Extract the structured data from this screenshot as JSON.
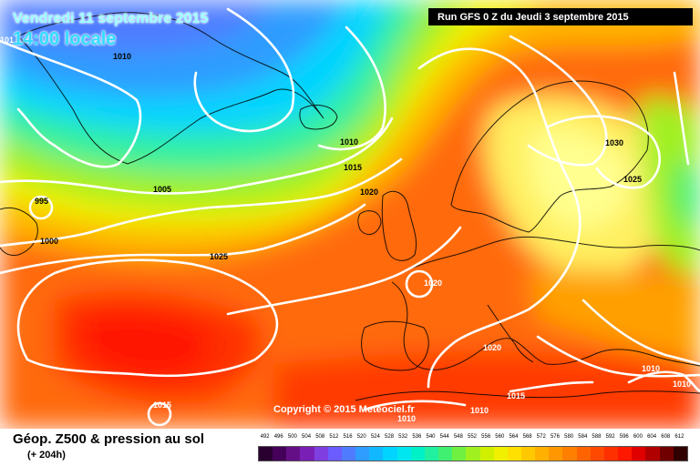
{
  "header": {
    "valid_date": "Vendredi 11 septembre 2015",
    "valid_time": "14:00 locale",
    "run_info": "Run GFS 0 Z du Jeudi 3 septembre 2015"
  },
  "credit": "Copyright © 2015 Meteociel.fr",
  "legend": {
    "title": "Géop. Z500 & pression au sol",
    "subtitle": "(+ 204h)",
    "scale_values": [
      "492",
      "496",
      "500",
      "504",
      "508",
      "512",
      "516",
      "520",
      "524",
      "528",
      "532",
      "536",
      "540",
      "544",
      "548",
      "552",
      "556",
      "560",
      "564",
      "568",
      "572",
      "576",
      "580",
      "584",
      "588",
      "592",
      "596",
      "600",
      "604",
      "608",
      "612"
    ],
    "scale_colors": [
      "#2a0030",
      "#45005a",
      "#650f86",
      "#7a1fb6",
      "#7f3fe0",
      "#6a5cff",
      "#4f7cff",
      "#2f9cff",
      "#12b8ff",
      "#00d4ff",
      "#00e6f0",
      "#00f0c8",
      "#20f0a0",
      "#40f070",
      "#70f040",
      "#a0f020",
      "#d0f000",
      "#f0f000",
      "#ffe000",
      "#ffc800",
      "#ffb000",
      "#ff9800",
      "#ff8000",
      "#ff6400",
      "#ff4800",
      "#ff3000",
      "#ff1800",
      "#e00000",
      "#b00000",
      "#700000",
      "#300000"
    ]
  },
  "isobar_labels": [
    {
      "id": "l1010a",
      "text": "1010"
    },
    {
      "id": "l995",
      "text": "995"
    },
    {
      "id": "l1000",
      "text": "1000"
    },
    {
      "id": "l1005",
      "text": "1005"
    },
    {
      "id": "l1010b",
      "text": "1010"
    },
    {
      "id": "l1015a",
      "text": "1015"
    },
    {
      "id": "l1020a",
      "text": "1020"
    },
    {
      "id": "l1025a",
      "text": "1025"
    },
    {
      "id": "l1020b",
      "text": "1020"
    },
    {
      "id": "l1030",
      "text": "1030"
    },
    {
      "id": "l1025b",
      "text": "1025"
    },
    {
      "id": "l1020c",
      "text": "1020"
    },
    {
      "id": "l1015b",
      "text": "1015"
    },
    {
      "id": "l1015c",
      "text": "1015"
    },
    {
      "id": "l1010c",
      "text": "1010"
    },
    {
      "id": "l1010d",
      "text": "1010"
    },
    {
      "id": "l1010e",
      "text": "1010"
    },
    {
      "id": "l1010f",
      "text": "1010"
    },
    {
      "id": "l101",
      "text": "101"
    }
  ],
  "colors": {
    "run_box_bg": "#000000",
    "isobars": "#ffffff",
    "coast": "#000000"
  }
}
